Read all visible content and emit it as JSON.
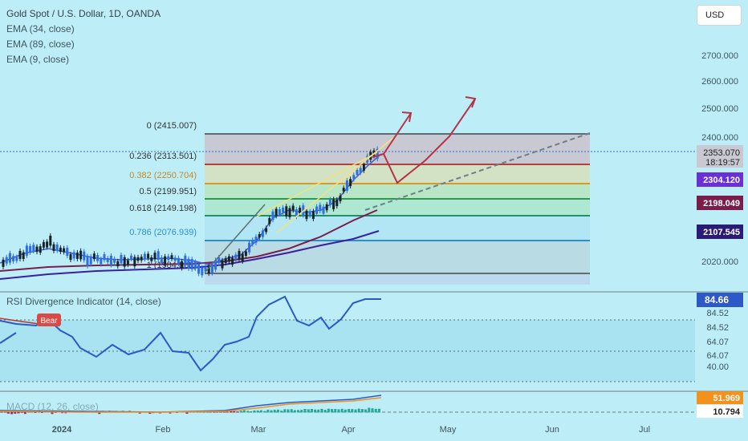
{
  "header": {
    "symbol_line": "Gold Spot / U.S. Dollar, 1D, OANDA",
    "ema_lines": [
      "EMA (34, close)",
      "EMA (89, close)",
      "EMA (9, close)"
    ],
    "currency_button": "USD"
  },
  "price_axis": {
    "ticks": [
      "2700.000",
      "2600.000",
      "2500.000",
      "2400.000",
      "2020.000"
    ],
    "current_price": "2353.070",
    "countdown": "18:19:57",
    "ema_tags": [
      {
        "label": "2304.120",
        "color": "#6b2fd6"
      },
      {
        "label": "2198.049",
        "color": "#7a1d4a"
      },
      {
        "label": "2107.545",
        "color": "#2a1b77"
      }
    ]
  },
  "fibonacci": {
    "levels": [
      {
        "label": "0 (2415.007)",
        "color": "#5c6e74"
      },
      {
        "label": "0.236 (2313.501)",
        "color": "#b0413e"
      },
      {
        "label": "0.382 (2250.704)",
        "color": "#d59a2e"
      },
      {
        "label": "0.5 (2199.951)",
        "color": "#2f9a4d"
      },
      {
        "label": "0.618 (2149.198)",
        "color": "#21906a"
      },
      {
        "label": "0.786 (2076.939)",
        "color": "#2a8fd6"
      },
      {
        "label": "1 (1984.888)",
        "color": "#5c6e74"
      }
    ]
  },
  "rsi": {
    "title": "RSI Divergence Indicator (14, close)",
    "value_tag": "84.66",
    "ticks": [
      "84.52",
      "84.52",
      "64.07",
      "64.07",
      "40.00"
    ],
    "bear_label": "Bear"
  },
  "macd": {
    "title": "MACD (12, 26, close)",
    "tags": [
      {
        "label": "51.969",
        "color": "#f2911c"
      },
      {
        "label": "10.794",
        "color": "#ffffff"
      }
    ]
  },
  "time_axis": {
    "labels": [
      "2024",
      "Feb",
      "Mar",
      "Apr",
      "May",
      "Jun",
      "Jul"
    ]
  }
}
